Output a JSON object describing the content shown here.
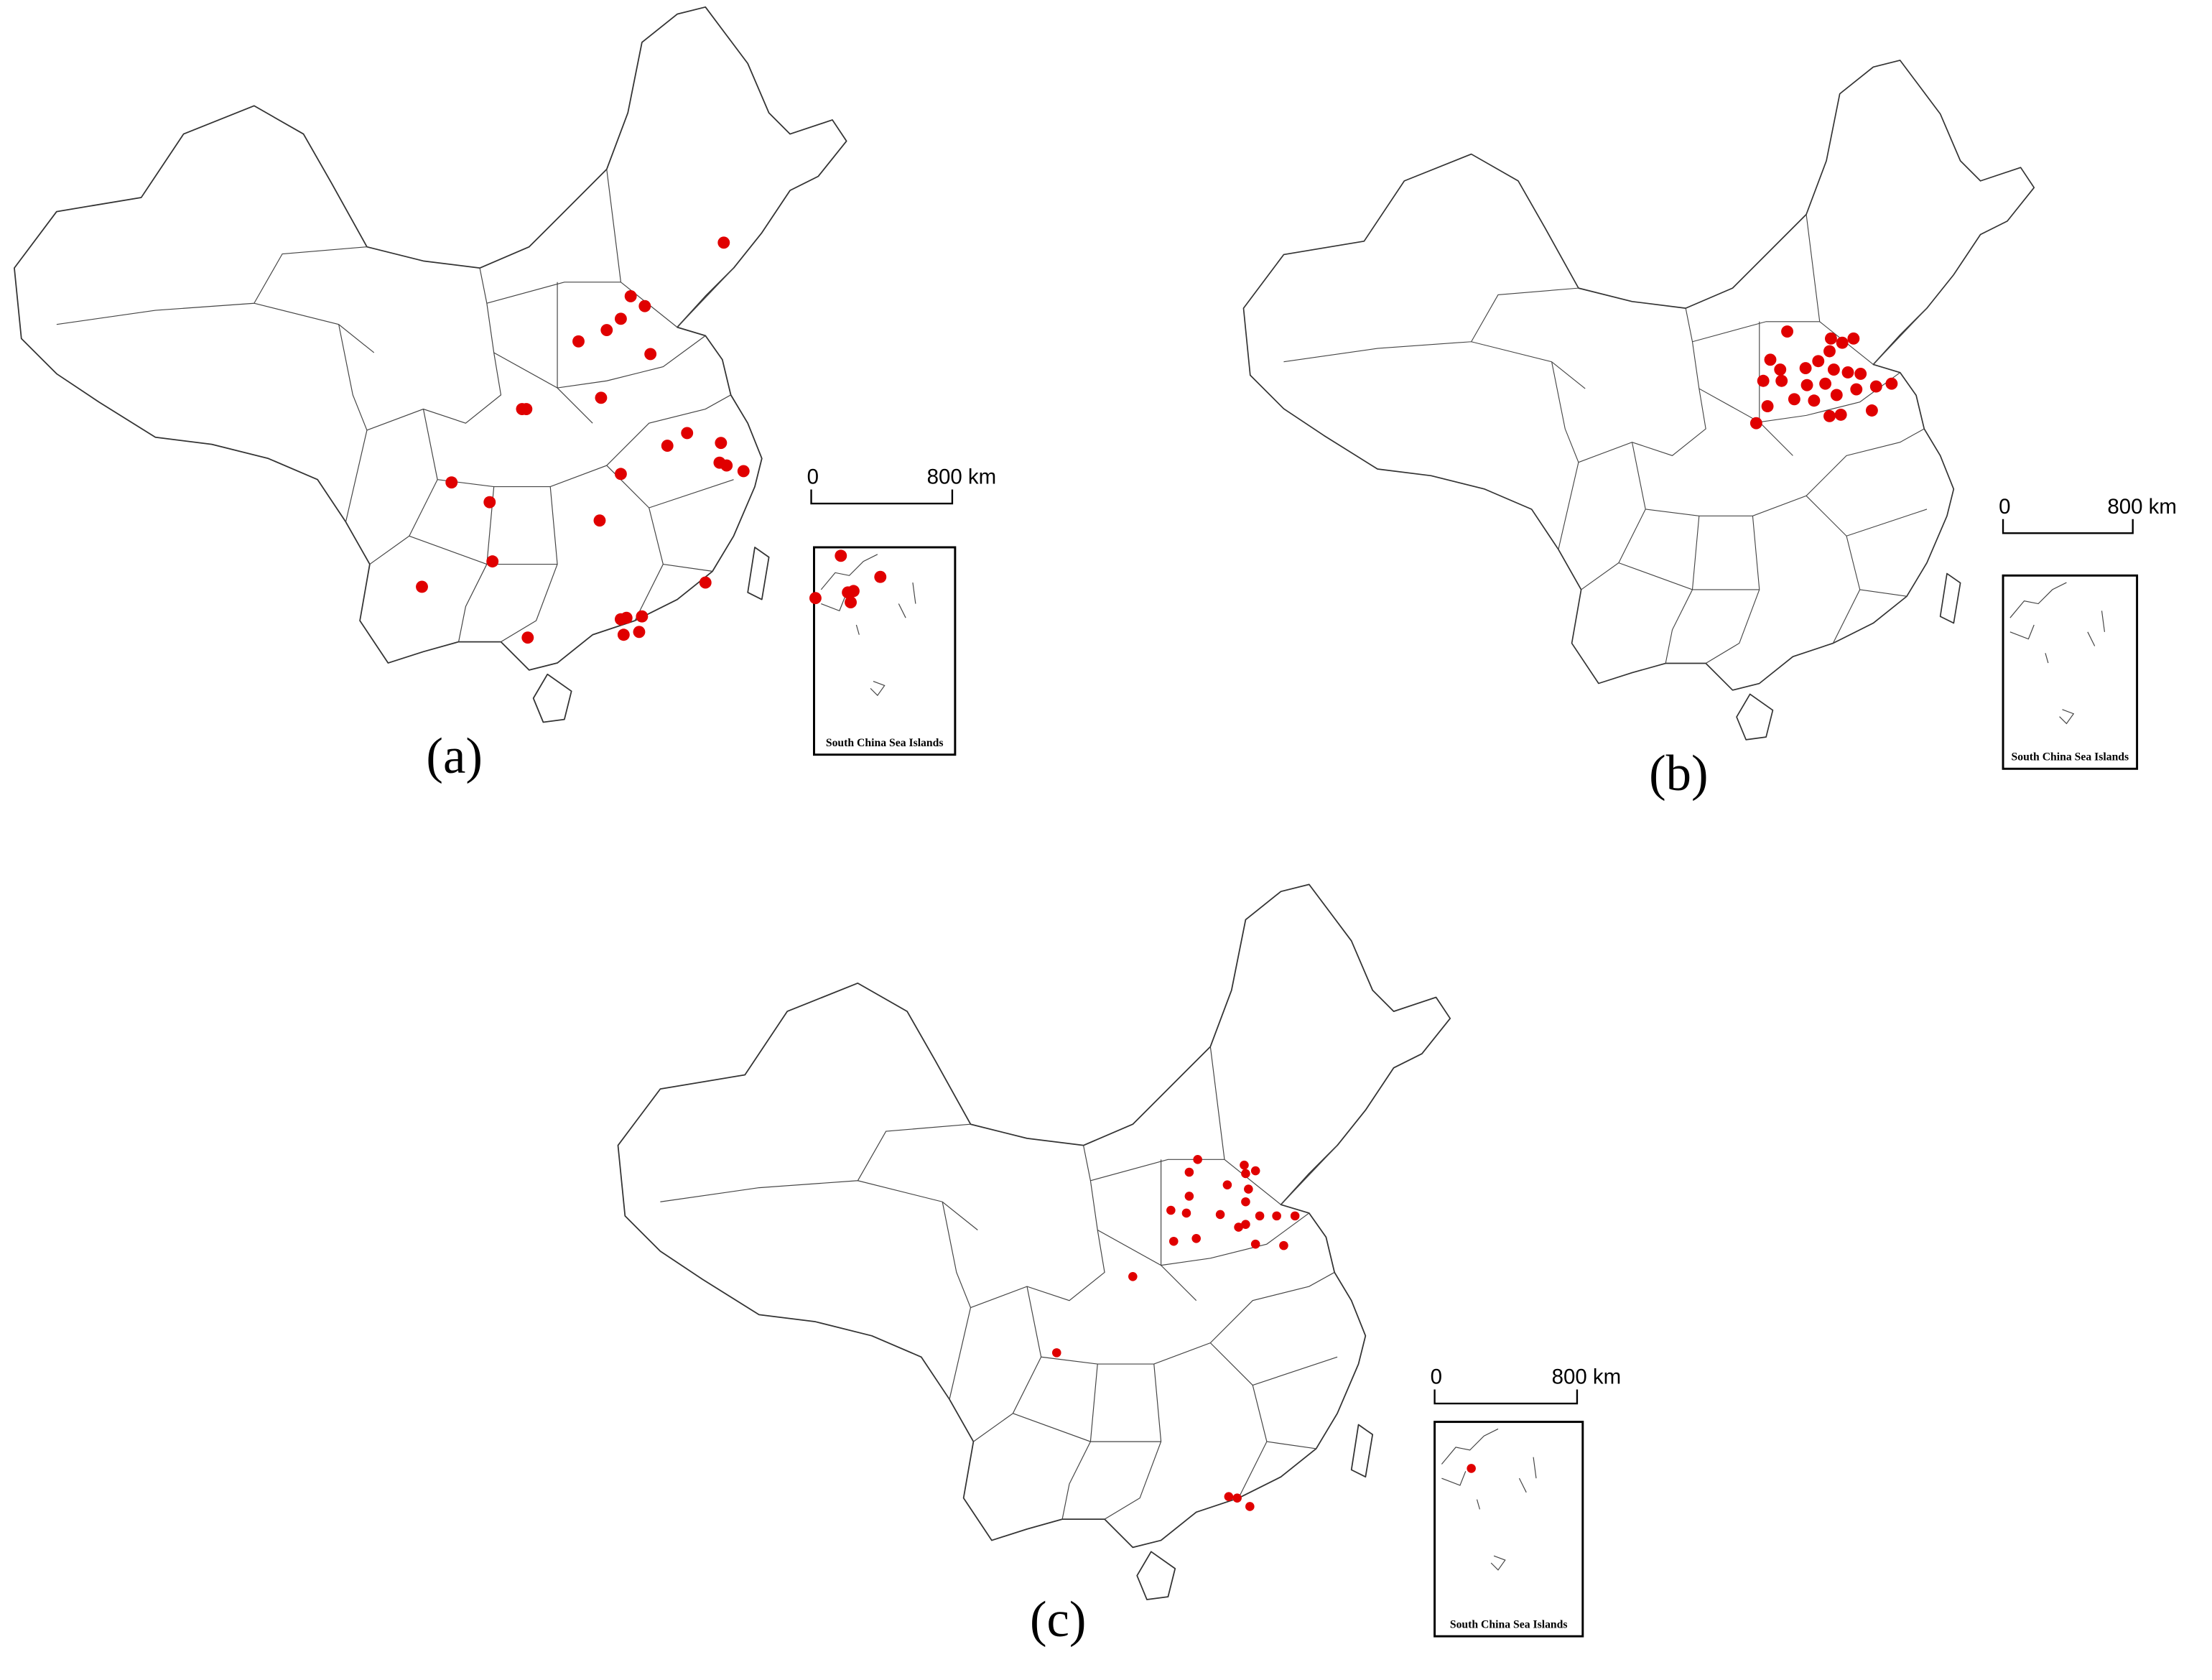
{
  "panels": [
    {
      "label": "(a)",
      "scale_start": "0",
      "scale_end": "800 km",
      "inset_caption": "South China Sea Islands"
    },
    {
      "label": "(b)",
      "scale_start": "0",
      "scale_end": "800 km",
      "inset_caption": "South China Sea Islands"
    },
    {
      "label": "(c)",
      "scale_start": "0",
      "scale_end": "800 km",
      "inset_caption": "South China Sea Islands"
    }
  ]
}
